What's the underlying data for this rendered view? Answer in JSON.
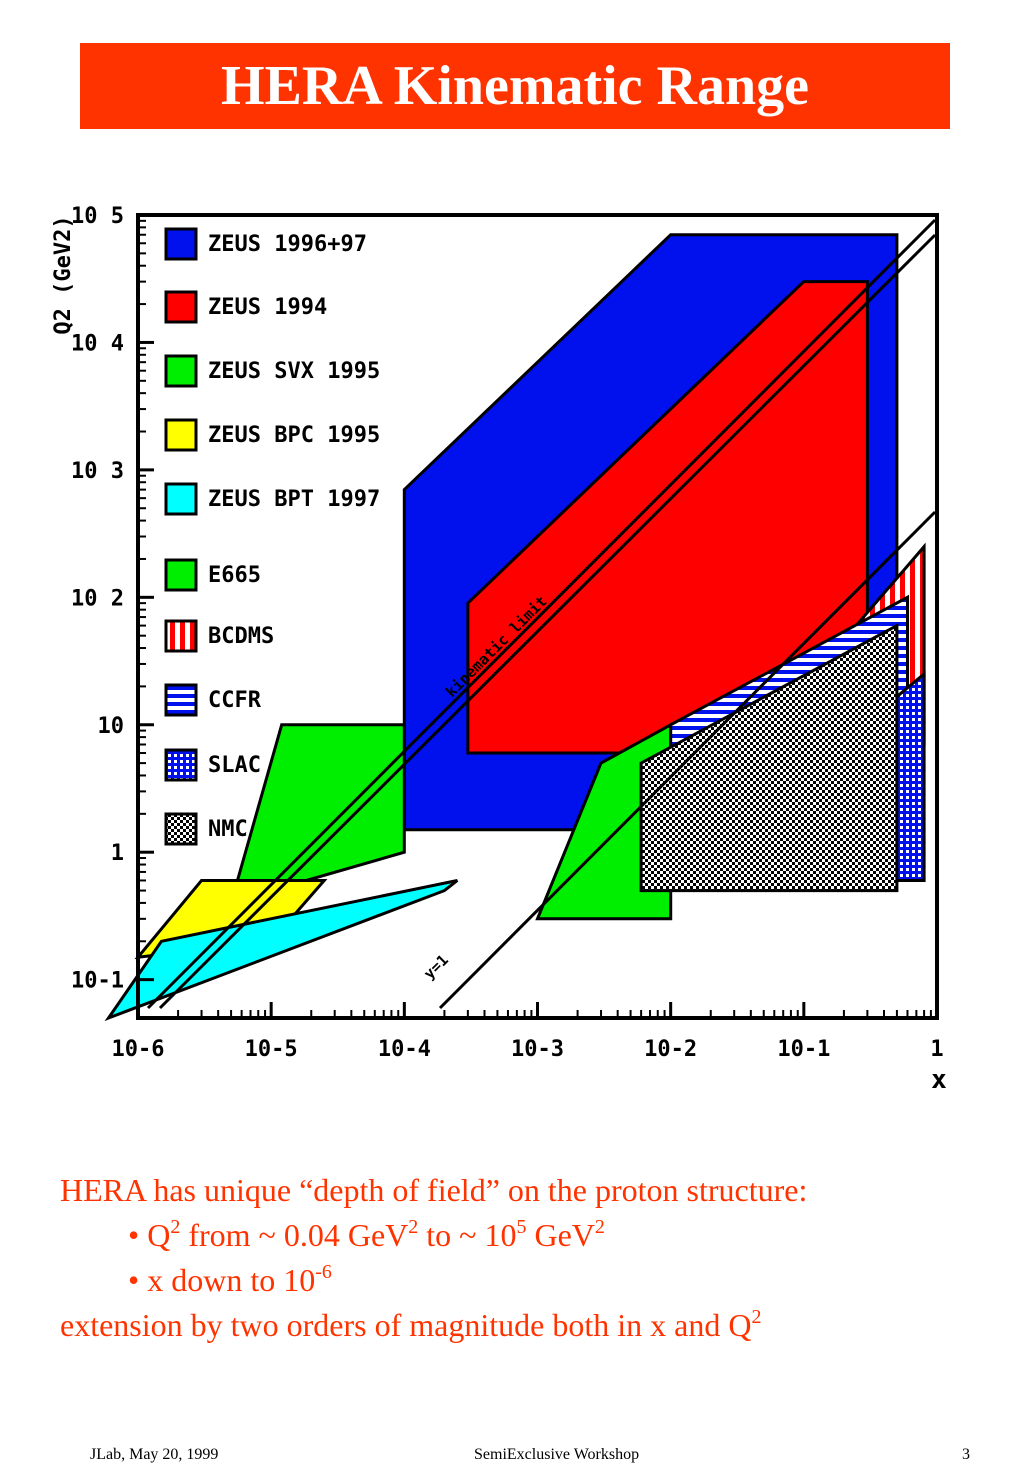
{
  "title": "HERA Kinematic Range",
  "chart_data": {
    "type": "area",
    "xlabel": "x",
    "ylabel": "Q2 (GeV2)",
    "x_scale": "log",
    "y_scale": "log",
    "xlim": [
      1e-06,
      1
    ],
    "ylim": [
      0.05,
      100000
    ],
    "x_ticks": [
      "10-6",
      "10-5",
      "10-4",
      "10-3",
      "10-2",
      "10-1",
      "1"
    ],
    "y_ticks": [
      "10-1",
      "1",
      "10",
      "10 2",
      "10 3",
      "10 4",
      "10 5"
    ],
    "legend_position": "top-left",
    "legend": [
      {
        "label": "ZEUS 1996+97",
        "color": "#0011ee",
        "pattern": "solid"
      },
      {
        "label": "ZEUS 1994",
        "color": "#ff0000",
        "pattern": "solid"
      },
      {
        "label": "ZEUS SVX 1995",
        "color": "#00ee00",
        "pattern": "solid"
      },
      {
        "label": "ZEUS BPC 1995",
        "color": "#ffff00",
        "pattern": "solid"
      },
      {
        "label": "ZEUS BPT 1997",
        "color": "#00ffff",
        "pattern": "solid"
      },
      {
        "label": "E665",
        "color": "#00ee00",
        "pattern": "solid"
      },
      {
        "label": "BCDMS",
        "color": "#ff0000",
        "pattern": "vstripes"
      },
      {
        "label": "CCFR",
        "color": "#0011ee",
        "pattern": "hstripes"
      },
      {
        "label": "SLAC",
        "color": "#0011ee",
        "pattern": "dotted"
      },
      {
        "label": "NMC",
        "color": "#000000",
        "pattern": "checker"
      }
    ],
    "annotations": [
      "kinematic limit",
      "y=1"
    ],
    "regions": [
      {
        "series": "ZEUS 1996+97",
        "points": [
          [
            0.0001,
            1.5
          ],
          [
            0.5,
            1.5
          ],
          [
            0.5,
            70000
          ],
          [
            0.01,
            70000
          ],
          [
            0.001,
            7000
          ],
          [
            0.0001,
            700
          ]
        ]
      },
      {
        "series": "ZEUS 1994",
        "points": [
          [
            0.0003,
            6
          ],
          [
            0.3,
            6
          ],
          [
            0.3,
            30000
          ],
          [
            0.1,
            30000
          ],
          [
            0.001,
            300
          ],
          [
            0.0003,
            90
          ]
        ]
      },
      {
        "series": "ZEUS SVX 1995",
        "points": [
          [
            1e-05,
            0.5
          ],
          [
            0.0001,
            1
          ],
          [
            0.0001,
            10
          ],
          [
            1.2e-05,
            10
          ],
          [
            5e-06,
            0.4
          ]
        ]
      },
      {
        "series": "ZEUS BPC 1995",
        "points": [
          [
            1e-06,
            0.15
          ],
          [
            1e-05,
            0.2
          ],
          [
            2.5e-05,
            0.6
          ],
          [
            3e-06,
            0.6
          ]
        ]
      },
      {
        "series": "ZEUS BPT 1997",
        "points": [
          [
            6e-07,
            0.05
          ],
          [
            0.0002,
            0.5
          ],
          [
            0.00025,
            0.6
          ],
          [
            1.5e-06,
            0.2
          ]
        ]
      },
      {
        "series": "E665",
        "points": [
          [
            0.001,
            0.3
          ],
          [
            0.01,
            0.3
          ],
          [
            0.01,
            10
          ],
          [
            0.003,
            5
          ]
        ]
      },
      {
        "series": "BCDMS",
        "points": [
          [
            0.1,
            7
          ],
          [
            0.8,
            7
          ],
          [
            0.8,
            250
          ],
          [
            0.1,
            20
          ]
        ]
      },
      {
        "series": "CCFR",
        "points": [
          [
            0.01,
            1.2
          ],
          [
            0.6,
            1.2
          ],
          [
            0.6,
            100
          ],
          [
            0.01,
            10
          ]
        ]
      },
      {
        "series": "SLAC",
        "points": [
          [
            0.07,
            0.6
          ],
          [
            0.8,
            0.6
          ],
          [
            0.8,
            25
          ],
          [
            0.07,
            3
          ]
        ]
      },
      {
        "series": "NMC",
        "points": [
          [
            0.006,
            0.5
          ],
          [
            0.5,
            0.5
          ],
          [
            0.5,
            60
          ],
          [
            0.006,
            5
          ]
        ]
      }
    ]
  },
  "text": {
    "line1": "HERA has unique “depth of field” on the proton structure:",
    "b1_a": "• Q",
    "b1_sup1": "2",
    "b1_b": " from ~ 0.04 GeV",
    "b1_sup2": "2",
    "b1_c": " to ~ 10",
    "b1_sup3": "5",
    "b1_d": " GeV",
    "b1_sup4": "2",
    "b2_a": "• x down to 10",
    "b2_sup": "-6",
    "line4_a": "extension by two orders of magnitude both in x and Q",
    "line4_sup": "2"
  },
  "footer": {
    "left": "JLab, May 20, 1999",
    "center": "SemiExclusive Workshop",
    "page": "3"
  }
}
